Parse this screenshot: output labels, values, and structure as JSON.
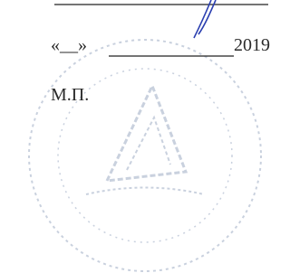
{
  "date_line": {
    "day": "«__»",
    "year": "2019"
  },
  "seal_mark": "М.П."
}
